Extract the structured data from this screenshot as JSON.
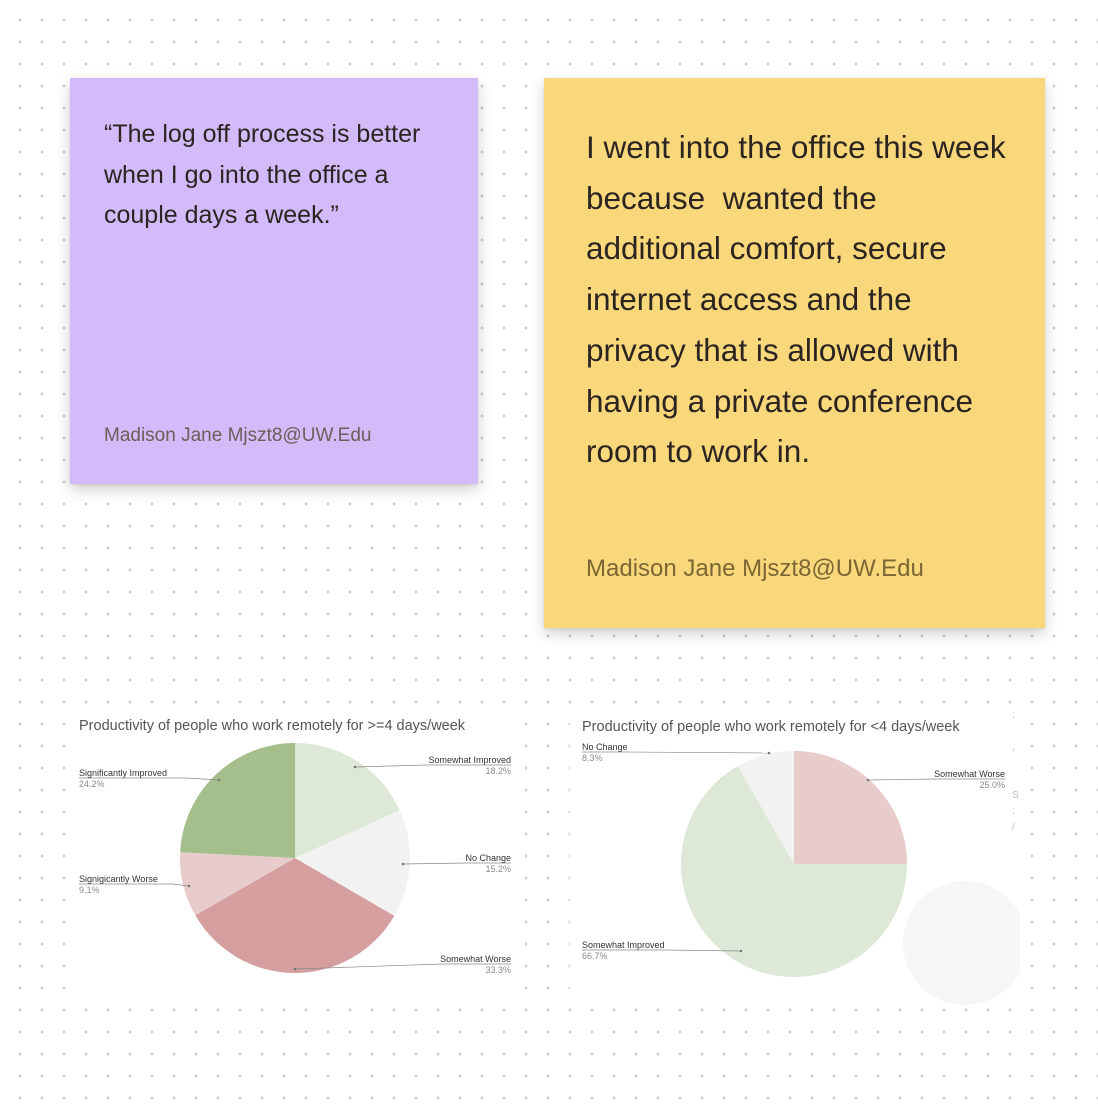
{
  "notes": [
    {
      "color": "#d3baf9",
      "text": "“The log off process is better when I go into the office a couple days a week.”",
      "author": "Madison Jane Mjszt8@UW.Edu"
    },
    {
      "color": "#f9d87b",
      "text": "I went into the office this week because  wanted the additional comfort, secure internet access and the privacy that is allowed with having a private conference room to work in.",
      "author": "Madison Jane Mjszt8@UW.Edu"
    }
  ],
  "chart_data": [
    {
      "type": "pie",
      "title": "Productivity of people who work remotely for >=4 days/week",
      "slices": [
        {
          "label": "Somewhat Improved",
          "value": 18.2,
          "value_label": "18.2%",
          "color": "#dde8d6"
        },
        {
          "label": "No Change",
          "value": 15.2,
          "value_label": "15.2%",
          "color": "#f2f2f2"
        },
        {
          "label": "Somewhat Worse",
          "value": 33.3,
          "value_label": "33.3%",
          "color": "#d69f9f"
        },
        {
          "label": "Signigicantly Worse",
          "value": 9.1,
          "value_label": "9.1%",
          "color": "#e8cccc"
        },
        {
          "label": "Significantly Improved",
          "value": 24.2,
          "value_label": "24.2%",
          "color": "#a4bf8b"
        }
      ]
    },
    {
      "type": "pie",
      "title": "Productivity of people who work remotely for <4 days/week",
      "slices": [
        {
          "label": "Somewhat Worse",
          "value": 25.0,
          "value_label": "25.0%",
          "color": "#e8cccc"
        },
        {
          "label": "Somewhat Improved",
          "value": 66.7,
          "value_label": "66.7%",
          "color": "#dde8d6"
        },
        {
          "label": "No Change",
          "value": 8.3,
          "value_label": "8.3%",
          "color": "#f2f2f2"
        }
      ]
    }
  ]
}
